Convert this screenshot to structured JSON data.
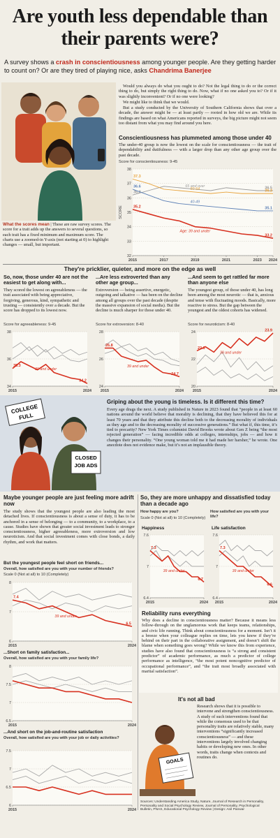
{
  "header": {
    "title": "Are youth less dependable than their parents were?",
    "deck": [
      "A survey shows a ",
      "crash in conscientiousness",
      " among younger people. Are they getting harder to count on? Or are they tired of playing nice, asks ",
      "Chandrima Banerjee"
    ]
  },
  "intro": {
    "paragraphs": [
      "Would you always do what you ought to do? Not the legal thing to do or the correct thing to do, but simply the right thing to do. Now, what if no one asked you to? Or if it was slightly inconvenient? Or if no one were looking?",
      "We might like to think that we would.",
      "But a study conducted by the University of Southern California shows that over a decade, the answer might be — at least partly — rooted in how old we are. While its findings are based on what Americans reported in surveys, the big picture might not seem too distant from what you may find around you here."
    ]
  },
  "score_note": {
    "label": "What the scores mean",
    "text": "These are raw survey scores. The score for a trait adds up the answers to several questions, so each trait has a fixed minimum and maximum score. The charts use a zoomed-in Y-axis (not starting at 0) to highlight changes — small, but important."
  },
  "conscientiousness": {
    "heading": "Conscientiousness has plummeted among those under 40",
    "text": "The under-40 group is now the lowest on the scale for conscientiousness — the trait of dependability and dutifulness — with a larger drop than any other age group over the past decade."
  },
  "traits": {
    "title": "They're pricklier, quieter, and more on the edge as well",
    "columns": [
      {
        "heading": "So, now, those under 40 are not the easiest to get along with...",
        "text": "They scored the lowest on agreeableness — the trait associated with being appreciative, forgiving, generous, kind, sympathetic and trusting — consistently over a decade. But the score has dropped to its lowest now."
      },
      {
        "heading": "...Are less extroverted than any other age group...",
        "text": "Extroversion — being assertive, energetic, outgoing and talkative — has been on the decline among all groups over the past decade (despite the massive expansion of social media). But the decline is much sharper for those under 40."
      },
      {
        "heading": "...And seem to get rattled far more than anyone else",
        "text": "The youngest group, of those under 40, has long been among the most neurotic — that is, anxious and tense with fluctuating moods. Basically, more reactive to stress. But the gap between the youngest and the oldest cohorts has widened."
      }
    ]
  },
  "griping": {
    "heading": "Griping about the young is timeless. Is it different this time?",
    "text": "Every age drags the next. A study published in Nature in 2023 found that “people in at least 60 nations around the world believe that morality is declining, that they have believed this for at least 70 years and that they attribute this decline both to the decreasing morality of individuals as they age and to the decreasing morality of successive generations.” But what if, this time, it’s tied to precarity? New York Times columnist David Brooks wrote about Gen Z being “the most rejected generation” — facing incredible odds at colleges, internships, jobs — and how it changes their personality. “One young woman told me it had made her harsher,” he wrote. One anecdote does not evidence make, but it’s not an implausible theory.",
    "signs": [
      [
        "COLLEGE",
        "FULL"
      ],
      [
        "CLOSED",
        "JOB ADS"
      ]
    ]
  },
  "adrift": {
    "heading": "Maybe younger people are just feeling more adrift now",
    "text": "The study shows that the youngest people are also leading the most detached lives. If conscientiousness is about a sense of duty, it has to be anchored in a sense of belonging — to a community, to a workplace, to a cause. Studies have shown that greater social investment leads to stronger conscientiousness, higher agreeableness, more extroversion and low neuroticism. And that social investment comes with close bonds, a daily rhythm, and work that matters."
  },
  "unhappy": {
    "heading": "So, they are more unhappy and dissatisfied today than a decade ago"
  },
  "reliability": {
    "heading": "Reliability runs everything",
    "text": "Why does a decline in conscientiousness matter? Because it means less follow-through on the unglamorous work that keeps teams, relationships, and civic life running. Think about conscientiousness for a moment. Isn’t it a breeze when your colleague replies on time, lets you know if they’re behind on their part in the collaborative assignment, and doesn’t shift the blame when something goes wrong? While we know this from experience, studies have also found that conscientiousness is “a strong and consistent predictor” of academic performance, as much a predictor of college performance as intelligence, “the most potent noncognitive predictor of occupational performance”, and “the trait most broadly associated with marital satisfaction”."
  },
  "not_bad": {
    "heading": "It's not all bad",
    "text": "Research shows that it is possible to intervene and strengthen conscientiousness. A study of such interventions found that while the consensus used to be that personality traits are relatively stable, many interventions “significantly increased conscientiousness” — and these interventions largely involved changing habits or developing new ones. In other words, traits change when contexts and routines do.",
    "sign": "GOALS"
  },
  "sources": "Sources: Understanding America Study, Nature, Journal of Research in Personality, Personality and Social Psychology Review, Journal of Personality, Psychological Bulletin, PNAS, Educational Psychology Review | Design: Anil Panwar",
  "chart_data": [
    {
      "type": "line",
      "title": "Score for conscientiousness: 9-45",
      "ylabel": "SCORE",
      "x": [
        2015,
        2016,
        2017,
        2018,
        2019,
        2020,
        2021,
        2022,
        2023,
        2024
      ],
      "xlim": [
        2015,
        2024
      ],
      "xticks": [
        2015,
        2017,
        2019,
        2021,
        2023,
        2024
      ],
      "ylim": [
        32,
        38
      ],
      "yticks": [
        32,
        33,
        34,
        35,
        36,
        37,
        38
      ],
      "grid": true,
      "series": [
        {
          "name": "Age: 39 and under",
          "color": "#d7301f",
          "values": [
            35.2,
            34.9,
            34.6,
            34.4,
            34.0,
            33.9,
            33.7,
            33.5,
            33.4,
            33.2
          ]
        },
        {
          "name": "40-49",
          "color": "#5b7fb5",
          "values": [
            36.6,
            36.2,
            35.8,
            35.6,
            35.5,
            35.4,
            35.3,
            35.2,
            35.1,
            35.1
          ]
        },
        {
          "name": "50-64",
          "color": "#e8a33c",
          "values": [
            37.3,
            37.0,
            36.6,
            36.5,
            36.4,
            36.3,
            36.4,
            36.3,
            36.3,
            36.3
          ]
        },
        {
          "name": "65 and over",
          "color": "#9a9a9a",
          "values": [
            36.2,
            36.5,
            36.8,
            36.7,
            36.6,
            36.5,
            36.7,
            36.6,
            36.5,
            36.5
          ]
        }
      ]
    },
    {
      "type": "line",
      "title": "Score for agreeableness: 9-45",
      "x": [
        2015,
        2016,
        2017,
        2018,
        2019,
        2020,
        2021,
        2022,
        2023,
        2024
      ],
      "xlim": [
        2015,
        2024
      ],
      "xticks": [
        2015,
        2024
      ],
      "ylim": [
        34,
        38
      ],
      "yticks": [
        34,
        36,
        38
      ],
      "grid": true,
      "series": [
        {
          "name": "39 and under",
          "color": "#d7301f",
          "values": [
            35.3,
            35.8,
            35.5,
            35.2,
            35.6,
            35.0,
            34.8,
            34.6,
            34.5,
            34.2
          ]
        },
        {
          "color": "#a8a8a8",
          "values": [
            36.8,
            37.2,
            36.6,
            37.0,
            36.5,
            36.9,
            36.4,
            36.7,
            36.3,
            36.5
          ]
        },
        {
          "color": "#a8a8a8",
          "values": [
            36.0,
            36.4,
            36.9,
            36.2,
            36.7,
            36.0,
            36.3,
            35.9,
            35.8,
            36.0
          ]
        }
      ]
    },
    {
      "type": "line",
      "title": "Score for extroversion: 8-40",
      "x": [
        2015,
        2016,
        2017,
        2018,
        2019,
        2020,
        2021,
        2022,
        2023,
        2024
      ],
      "xlim": [
        2015,
        2024
      ],
      "xticks": [
        2015,
        2024
      ],
      "ylim": [
        24,
        28
      ],
      "yticks": [
        24,
        26,
        28
      ],
      "grid": true,
      "series": [
        {
          "name": "39 and under",
          "color": "#d7301f",
          "values": [
            26.8,
            26.8,
            26.2,
            26.0,
            25.8,
            25.9,
            25.4,
            25.0,
            24.9,
            24.7
          ]
        },
        {
          "color": "#a8a8a8",
          "values": [
            27.0,
            27.4,
            26.9,
            27.1,
            26.6,
            26.8,
            26.3,
            26.5,
            26.0,
            25.8
          ]
        },
        {
          "color": "#a8a8a8",
          "values": [
            26.4,
            26.6,
            26.9,
            26.5,
            26.2,
            26.4,
            26.0,
            25.9,
            25.6,
            25.5
          ]
        }
      ]
    },
    {
      "type": "line",
      "title": "Score for neuroticism: 8-40",
      "x": [
        2015,
        2016,
        2017,
        2018,
        2019,
        2020,
        2021,
        2022,
        2023,
        2024
      ],
      "xlim": [
        2015,
        2024
      ],
      "xticks": [
        2015,
        2024
      ],
      "ylim": [
        20,
        24
      ],
      "yticks": [
        20,
        22,
        24
      ],
      "grid": true,
      "series": [
        {
          "name": "39 and under",
          "color": "#d7301f",
          "values": [
            22.6,
            22.9,
            22.5,
            23.2,
            22.8,
            23.5,
            23.0,
            23.6,
            23.3,
            23.9
          ]
        },
        {
          "color": "#a8a8a8",
          "values": [
            21.6,
            22.3,
            21.8,
            22.5,
            21.4,
            22.1,
            21.2,
            21.8,
            21.1,
            21.5
          ]
        },
        {
          "color": "#a8a8a8",
          "values": [
            21.0,
            21.4,
            20.8,
            21.2,
            20.6,
            20.9,
            20.5,
            20.9,
            20.4,
            20.7
          ]
        }
      ]
    },
    {
      "type": "line",
      "question": "How happy are you?",
      "scale": "Scale 0 (Not at all) to 10 (Completely)",
      "title": "Happiness",
      "x": [
        2015,
        2016,
        2017,
        2018,
        2019,
        2020,
        2021,
        2022,
        2023,
        2024
      ],
      "xlim": [
        2015,
        2024
      ],
      "xticks": [
        2015,
        2024
      ],
      "ylim": [
        6.4,
        7.6
      ],
      "yticks": [
        6.4,
        7,
        7.6
      ],
      "grid": true,
      "series": [
        {
          "name": "39 and under",
          "color": "#d7301f",
          "values": [
            7.3,
            7.2,
            7.1,
            7.2,
            7.0,
            6.9,
            6.9,
            6.8,
            6.8,
            6.7
          ]
        },
        {
          "color": "#a8a8a8",
          "values": [
            7.3,
            7.4,
            7.3,
            7.3,
            7.2,
            7.3,
            7.2,
            7.3,
            7.2,
            7.3
          ]
        },
        {
          "color": "#a8a8a8",
          "values": [
            7.2,
            7.3,
            7.1,
            7.2,
            7.1,
            7.0,
            7.1,
            7.0,
            7.0,
            7.0
          ]
        }
      ]
    },
    {
      "type": "line",
      "question": "How satisfied are you with your life?",
      "title": "Life satisfaction",
      "x": [
        2015,
        2016,
        2017,
        2018,
        2019,
        2020,
        2021,
        2022,
        2023,
        2024
      ],
      "xlim": [
        2015,
        2024
      ],
      "xticks": [
        2015,
        2024
      ],
      "ylim": [
        6.4,
        7.6
      ],
      "yticks": [
        6.4,
        7,
        7.6
      ],
      "grid": true,
      "series": [
        {
          "name": "39 and under",
          "color": "#d7301f",
          "values": [
            7.3,
            7.2,
            7.1,
            7.0,
            7.0,
            6.9,
            6.8,
            6.8,
            6.7,
            6.6
          ]
        },
        {
          "color": "#a8a8a8",
          "values": [
            7.4,
            7.5,
            7.3,
            7.4,
            7.3,
            7.4,
            7.3,
            7.3,
            7.2,
            7.3
          ]
        },
        {
          "color": "#a8a8a8",
          "values": [
            7.2,
            7.3,
            7.2,
            7.1,
            7.2,
            7.0,
            7.1,
            7.0,
            7.0,
            7.0
          ]
        }
      ]
    },
    {
      "type": "line",
      "subtitle": "But the youngest people feel short on friends...",
      "question": "Overall, how satisfied are you with your number of friends?",
      "scale": "Scale 0 (Not at all) to 10 (Completely)",
      "x": [
        2015,
        2016,
        2017,
        2018,
        2019,
        2020,
        2021,
        2022,
        2023,
        2024
      ],
      "xlim": [
        2015,
        2024
      ],
      "xticks": [
        2015,
        2024
      ],
      "ylim": [
        6,
        8
      ],
      "yticks": [
        6,
        7,
        8
      ],
      "grid": true,
      "series": [
        {
          "name": "39 and under",
          "color": "#d7301f",
          "values": [
            7.4,
            7.3,
            7.1,
            7.2,
            7.0,
            6.8,
            6.9,
            6.7,
            6.6,
            6.5
          ]
        },
        {
          "color": "#a8a8a8",
          "values": [
            7.6,
            7.8,
            7.4,
            7.7,
            7.5,
            7.6,
            7.4,
            7.5,
            7.6,
            7.5
          ]
        },
        {
          "color": "#a8a8a8",
          "values": [
            7.2,
            7.4,
            7.3,
            7.1,
            7.3,
            7.2,
            7.0,
            7.2,
            7.1,
            7.2
          ]
        }
      ]
    },
    {
      "type": "line",
      "subtitle": "...Short on family satisfaction...",
      "question": "Overall, how satisfied are you with your family life?",
      "x": [
        2015,
        2016,
        2017,
        2018,
        2019,
        2020,
        2021,
        2022,
        2023,
        2024
      ],
      "xlim": [
        2015,
        2024
      ],
      "xticks": [
        2015,
        2024
      ],
      "ylim": [
        6.5,
        8
      ],
      "yticks": [
        6.5,
        7,
        7.5,
        8
      ],
      "grid": true,
      "series": [
        {
          "color": "#d7301f",
          "values": [
            7.6,
            7.5,
            7.4,
            7.4,
            7.3,
            7.3,
            7.2,
            7.1,
            7.1,
            7.0
          ]
        },
        {
          "color": "#a8a8a8",
          "values": [
            7.7,
            7.8,
            7.6,
            7.7,
            7.6,
            7.7,
            7.5,
            7.6,
            7.5,
            7.6
          ]
        },
        {
          "color": "#a8a8a8",
          "values": [
            7.5,
            7.6,
            7.5,
            7.4,
            7.5,
            7.4,
            7.3,
            7.4,
            7.3,
            7.3
          ]
        }
      ]
    },
    {
      "type": "line",
      "subtitle": "...And short on the job-and-routine satisfaction",
      "question": "Overall, how satisfied are you with your job or daily activities?",
      "x": [
        2015,
        2016,
        2017,
        2018,
        2019,
        2020,
        2021,
        2022,
        2023,
        2024
      ],
      "xlim": [
        2015,
        2024
      ],
      "xticks": [
        2015,
        2024
      ],
      "ylim": [
        6,
        7.5
      ],
      "yticks": [
        6,
        6.5,
        7,
        7.5
      ],
      "grid": true,
      "series": [
        {
          "color": "#d7301f",
          "values": [
            6.5,
            6.5,
            6.4,
            6.5,
            6.4,
            6.3,
            6.4,
            6.3,
            6.3,
            6.3
          ]
        },
        {
          "color": "#a8a8a8",
          "values": [
            6.9,
            7.0,
            6.8,
            7.1,
            6.9,
            7.0,
            6.8,
            6.9,
            6.8,
            6.9
          ]
        },
        {
          "color": "#a8a8a8",
          "values": [
            6.7,
            6.8,
            6.6,
            6.7,
            6.8,
            6.6,
            6.7,
            6.6,
            6.7,
            6.6
          ]
        }
      ]
    }
  ]
}
